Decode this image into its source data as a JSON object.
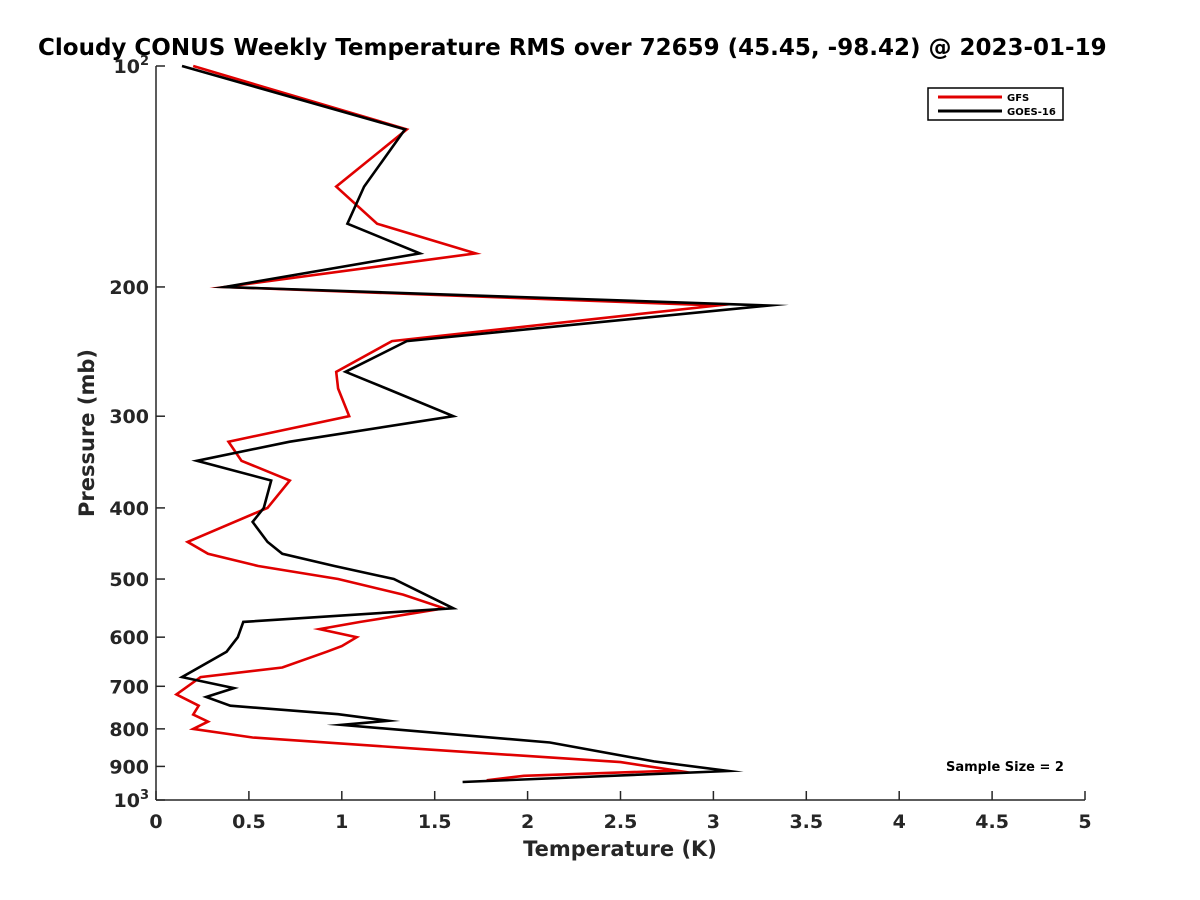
{
  "chart_data": {
    "type": "line",
    "title": "Cloudy CONUS Weekly Temperature RMS over 72659 (45.45, -98.42) @ 2023-01-19",
    "xlabel": "Temperature (K)",
    "ylabel": "Pressure (mb)",
    "xlim": [
      0,
      5
    ],
    "ylim": [
      100,
      1000
    ],
    "yscale": "log",
    "y_reversed": true,
    "grid": false,
    "legend_position": "top-right",
    "x_ticks": [
      "0",
      "0.5",
      "1",
      "1.5",
      "2",
      "2.5",
      "3",
      "3.5",
      "4",
      "4.5",
      "5"
    ],
    "y_ticks": [
      {
        "value": 100,
        "base": "10",
        "exp": "2"
      },
      {
        "value": 200,
        "base": "200",
        "exp": ""
      },
      {
        "value": 300,
        "base": "300",
        "exp": ""
      },
      {
        "value": 400,
        "base": "400",
        "exp": ""
      },
      {
        "value": 500,
        "base": "500",
        "exp": ""
      },
      {
        "value": 600,
        "base": "600",
        "exp": ""
      },
      {
        "value": 700,
        "base": "700",
        "exp": ""
      },
      {
        "value": 800,
        "base": "800",
        "exp": ""
      },
      {
        "value": 900,
        "base": "900",
        "exp": ""
      },
      {
        "value": 1000,
        "base": "10",
        "exp": "3"
      }
    ],
    "annotation": "Sample Size = 2",
    "series": [
      {
        "name": "GFS",
        "color": "#e00000",
        "points": [
          {
            "x": 0.2,
            "y": 100
          },
          {
            "x": 1.35,
            "y": 122
          },
          {
            "x": 0.97,
            "y": 146
          },
          {
            "x": 1.19,
            "y": 164
          },
          {
            "x": 1.72,
            "y": 180
          },
          {
            "x": 0.37,
            "y": 200
          },
          {
            "x": 3.02,
            "y": 212
          },
          {
            "x": 1.27,
            "y": 237
          },
          {
            "x": 0.97,
            "y": 261
          },
          {
            "x": 0.98,
            "y": 275
          },
          {
            "x": 1.04,
            "y": 300
          },
          {
            "x": 0.39,
            "y": 325
          },
          {
            "x": 0.46,
            "y": 345
          },
          {
            "x": 0.72,
            "y": 367
          },
          {
            "x": 0.6,
            "y": 400
          },
          {
            "x": 0.17,
            "y": 445
          },
          {
            "x": 0.28,
            "y": 462
          },
          {
            "x": 0.55,
            "y": 480
          },
          {
            "x": 0.98,
            "y": 500
          },
          {
            "x": 1.33,
            "y": 525
          },
          {
            "x": 1.55,
            "y": 548
          },
          {
            "x": 1.1,
            "y": 572
          },
          {
            "x": 0.88,
            "y": 585
          },
          {
            "x": 1.08,
            "y": 600
          },
          {
            "x": 1.0,
            "y": 617
          },
          {
            "x": 0.92,
            "y": 628
          },
          {
            "x": 0.68,
            "y": 660
          },
          {
            "x": 0.24,
            "y": 680
          },
          {
            "x": 0.11,
            "y": 718
          },
          {
            "x": 0.23,
            "y": 744
          },
          {
            "x": 0.2,
            "y": 765
          },
          {
            "x": 0.28,
            "y": 782
          },
          {
            "x": 0.2,
            "y": 800
          },
          {
            "x": 0.52,
            "y": 822
          },
          {
            "x": 1.42,
            "y": 852
          },
          {
            "x": 2.5,
            "y": 888
          },
          {
            "x": 2.8,
            "y": 912
          },
          {
            "x": 1.98,
            "y": 927
          },
          {
            "x": 1.78,
            "y": 940
          }
        ]
      },
      {
        "name": "GOES-16",
        "color": "#000000",
        "points": [
          {
            "x": 0.14,
            "y": 100
          },
          {
            "x": 1.34,
            "y": 122
          },
          {
            "x": 1.12,
            "y": 146
          },
          {
            "x": 1.03,
            "y": 164
          },
          {
            "x": 1.42,
            "y": 180
          },
          {
            "x": 0.37,
            "y": 200
          },
          {
            "x": 3.3,
            "y": 212
          },
          {
            "x": 1.35,
            "y": 237
          },
          {
            "x": 1.02,
            "y": 261
          },
          {
            "x": 1.24,
            "y": 275
          },
          {
            "x": 1.6,
            "y": 300
          },
          {
            "x": 0.72,
            "y": 325
          },
          {
            "x": 0.22,
            "y": 345
          },
          {
            "x": 0.62,
            "y": 367
          },
          {
            "x": 0.58,
            "y": 400
          },
          {
            "x": 0.52,
            "y": 418
          },
          {
            "x": 0.6,
            "y": 445
          },
          {
            "x": 0.68,
            "y": 462
          },
          {
            "x": 0.96,
            "y": 480
          },
          {
            "x": 1.28,
            "y": 500
          },
          {
            "x": 1.6,
            "y": 548
          },
          {
            "x": 0.47,
            "y": 572
          },
          {
            "x": 0.44,
            "y": 600
          },
          {
            "x": 0.38,
            "y": 628
          },
          {
            "x": 0.14,
            "y": 680
          },
          {
            "x": 0.42,
            "y": 704
          },
          {
            "x": 0.27,
            "y": 724
          },
          {
            "x": 0.4,
            "y": 744
          },
          {
            "x": 0.98,
            "y": 764
          },
          {
            "x": 1.25,
            "y": 780
          },
          {
            "x": 1.0,
            "y": 790
          },
          {
            "x": 2.12,
            "y": 835
          },
          {
            "x": 2.68,
            "y": 886
          },
          {
            "x": 3.08,
            "y": 913
          },
          {
            "x": 1.65,
            "y": 945
          }
        ]
      }
    ]
  }
}
